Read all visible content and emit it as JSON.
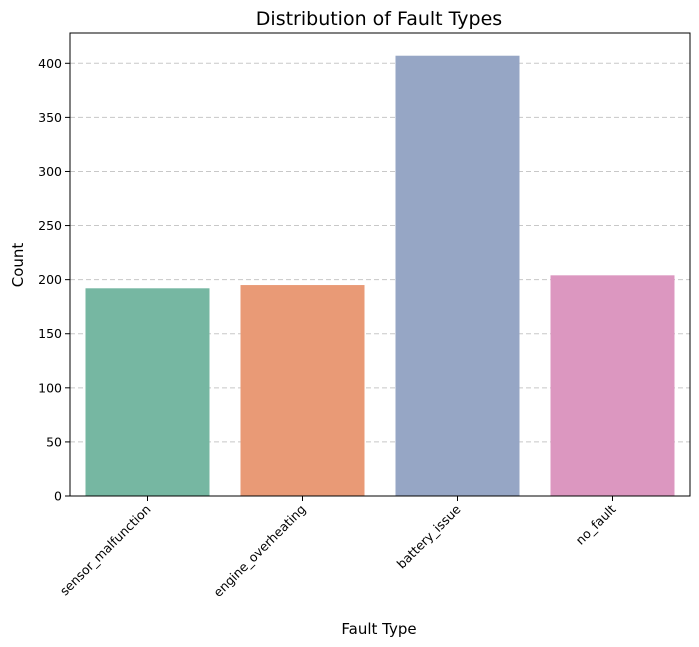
{
  "chart_data": {
    "type": "bar",
    "title": "Distribution of Fault Types",
    "xlabel": "Fault Type",
    "ylabel": "Count",
    "categories": [
      "sensor_malfunction",
      "engine_overheating",
      "battery_issue",
      "no_fault"
    ],
    "values": [
      192,
      195,
      407,
      204
    ],
    "ylim": [
      0,
      428
    ],
    "yticks": [
      0,
      50,
      100,
      150,
      200,
      250,
      300,
      350,
      400
    ],
    "grid": "y-dashed",
    "colors": [
      "#76b7a2",
      "#e99a76",
      "#96a6c5",
      "#dc97c0"
    ]
  }
}
